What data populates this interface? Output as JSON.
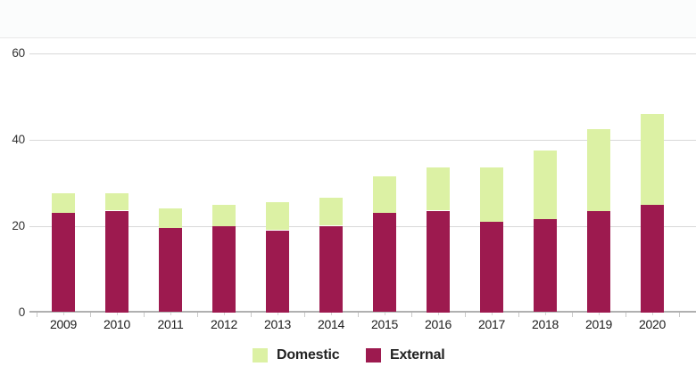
{
  "page": {
    "background_color": "#ffffff",
    "header_rule_color": "#e8e8e8"
  },
  "chart_data": {
    "type": "bar",
    "subtype": "stacked-vertical",
    "title": "",
    "xlabel": "",
    "ylabel": "",
    "categories": [
      "2009",
      "2010",
      "2011",
      "2012",
      "2013",
      "2014",
      "2015",
      "2016",
      "2017",
      "2018",
      "2019",
      "2020"
    ],
    "series": [
      {
        "name": "External",
        "color": "#9d1a4f",
        "values": [
          23,
          23.5,
          19.5,
          20,
          19,
          20,
          23,
          23.5,
          21,
          21.5,
          23.5,
          25
        ]
      },
      {
        "name": "Domestic",
        "color": "#dcf1a4",
        "values": [
          4.5,
          4,
          4.5,
          5,
          6.5,
          6.5,
          8.5,
          10,
          12.5,
          16,
          19,
          21
        ]
      }
    ],
    "stack_order_bottom_to_top": [
      "External",
      "Domestic"
    ],
    "totals": [
      27.5,
      27.5,
      24,
      25,
      25.5,
      26.5,
      31.5,
      33.5,
      33.5,
      37.5,
      42.5,
      46
    ],
    "ylim": [
      0,
      60
    ],
    "yticks": [
      0,
      20,
      40,
      60
    ],
    "ytick_labels": [
      "0",
      "20",
      "40",
      "60"
    ],
    "grid": "horizontal",
    "gridline_color": "#d8d8d8",
    "baseline_color": "#b0b0b0",
    "legend_position": "bottom-center"
  },
  "legend": {
    "items": [
      {
        "label": "Domestic",
        "color": "#dcf1a4"
      },
      {
        "label": "External",
        "color": "#9d1a4f"
      }
    ]
  }
}
